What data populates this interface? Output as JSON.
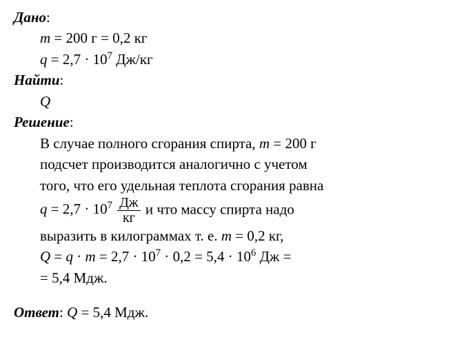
{
  "given": {
    "heading": "Дано",
    "colon": ":",
    "lines": [
      {
        "expr_html": "<span class='ital'>m</span> = 200 г = 0,2 кг"
      },
      {
        "expr_html": "<span class='ital'>q</span> = 2,7 · 10<span class='sup'>7</span> Дж/кг"
      }
    ]
  },
  "find": {
    "heading": "Найти",
    "colon": ":",
    "target_html": "<span class='ital'>Q</span>"
  },
  "solution": {
    "heading": "Решение",
    "colon": ":",
    "paragraphs": [
      "В случае полного сгорания спирта, <span class='ital'>m</span> = 200 г",
      "подсчет производится аналогично с учетом",
      "того, что его удельная теплота сгорания равна",
      "<span class='nowrap'><span class='ital'>q</span> = 2,7 · 10<span class='sup'>7</span> <span class='frac'><span class='num'>Дж</span><span class='den'>кг</span></span></span> и что массу спирта надо",
      "выразить в килограммах т. е. <span class='ital'>m</span> = 0,2 кг,",
      "<span class='ital'>Q</span> = <span class='ital'>q</span> · <span class='ital'>m</span> = 2,7 · 10<span class='sup'>7</span> · 0,2 = 5,4 · 10<span class='sup'>6</span> Дж =",
      "= 5,4 Мдж."
    ]
  },
  "answer": {
    "heading": "Ответ",
    "colon": ": ",
    "text_html": "<span class='ital'>Q</span> = 5,4 Мдж."
  }
}
